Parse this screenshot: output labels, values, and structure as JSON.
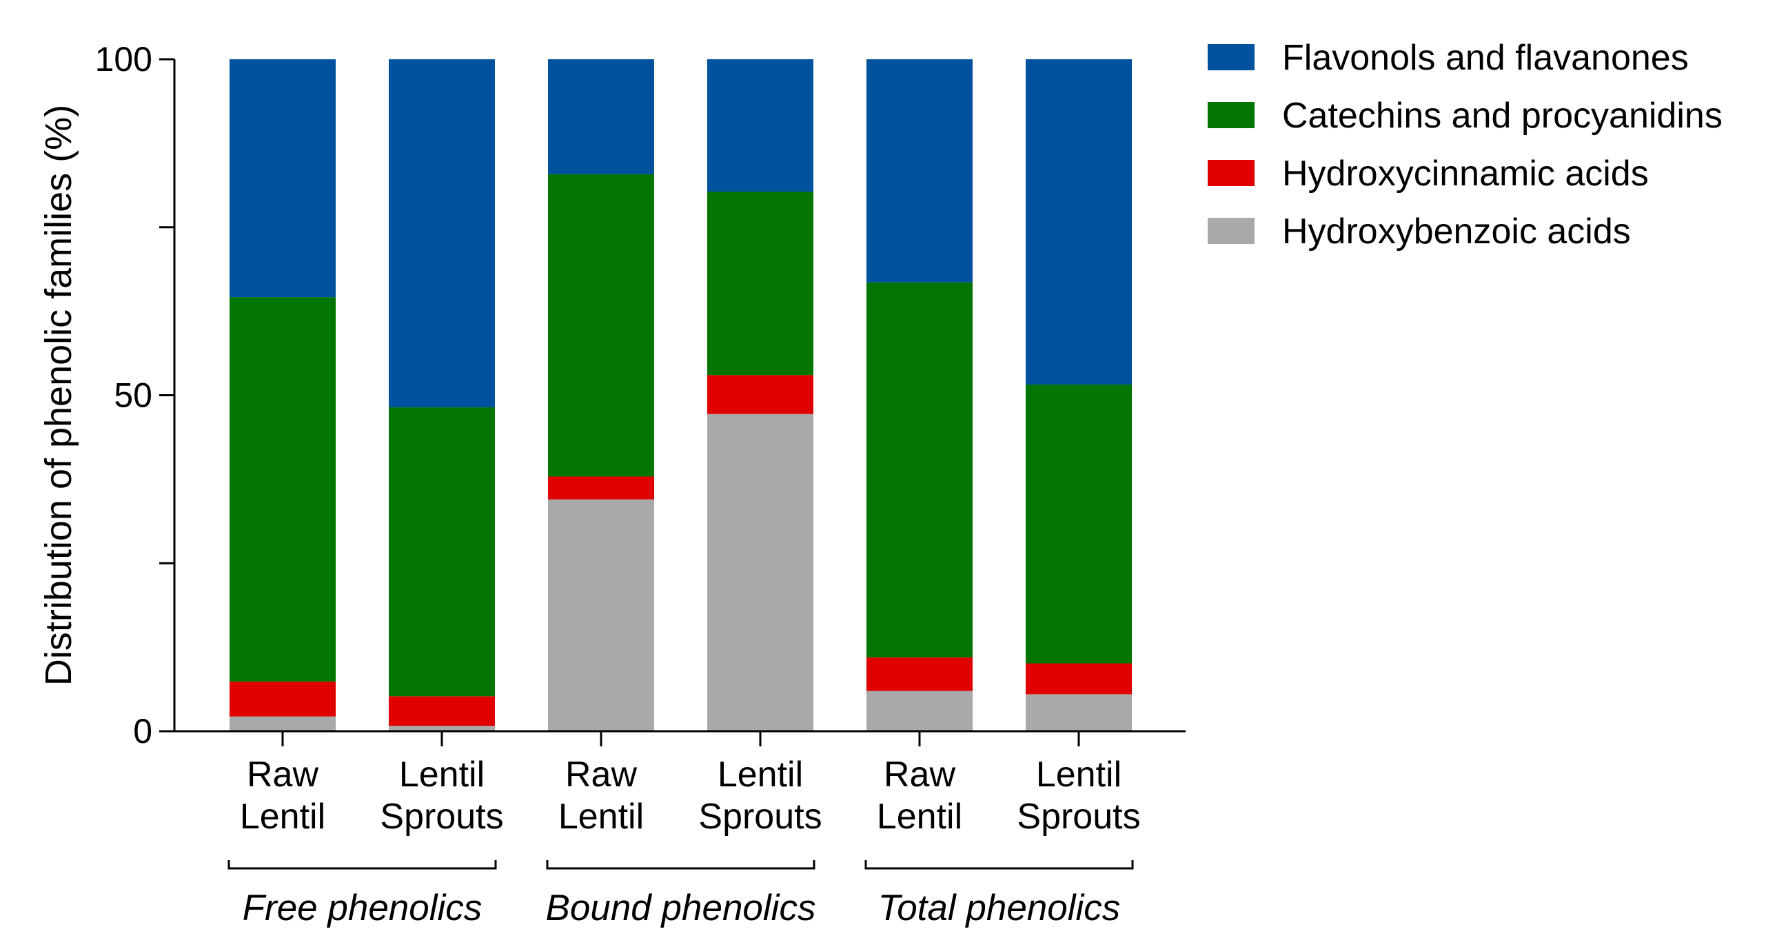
{
  "chart_data": {
    "type": "bar",
    "stacked": true,
    "ylabel": "Distribution of phenolic families (%)",
    "xlabel": "",
    "ylim": [
      0,
      100
    ],
    "y_ticks": [
      0,
      25,
      50,
      75,
      100
    ],
    "y_tick_labels": [
      "0",
      "",
      "50",
      "",
      "100"
    ],
    "categories": [
      {
        "line1": "Raw",
        "line2": "Lentil"
      },
      {
        "line1": "Lentil",
        "line2": "Sprouts"
      },
      {
        "line1": "Raw",
        "line2": "Lentil"
      },
      {
        "line1": "Lentil",
        "line2": "Sprouts"
      },
      {
        "line1": "Raw",
        "line2": "Lentil"
      },
      {
        "line1": "Lentil",
        "line2": "Sprouts"
      }
    ],
    "groups": [
      {
        "label": "Free phenolics",
        "span": [
          0,
          1
        ]
      },
      {
        "label": "Bound phenolics",
        "span": [
          2,
          3
        ]
      },
      {
        "label": "Total phenolics",
        "span": [
          4,
          5
        ]
      }
    ],
    "series": [
      {
        "name": "Hydroxybenzoic acids",
        "color": "#a9a9a9",
        "values": [
          2.2,
          0.8,
          34.5,
          47.2,
          6.0,
          5.5
        ]
      },
      {
        "name": "Hydroxycinnamic acids",
        "color": "#e00000",
        "values": [
          5.2,
          4.4,
          3.4,
          5.8,
          5.0,
          4.6
        ]
      },
      {
        "name": "Catechins and procyanidins",
        "color": "#027502",
        "values": [
          57.2,
          43.0,
          45.0,
          27.3,
          55.8,
          41.5
        ]
      },
      {
        "name": "Flavonols and flavanones",
        "color": "#01529e",
        "values": [
          35.4,
          51.8,
          17.1,
          19.7,
          33.2,
          48.4
        ]
      }
    ],
    "legend": {
      "position": "top-right",
      "order": [
        "Flavonols and flavanones",
        "Catechins and procyanidins",
        "Hydroxycinnamic acids",
        "Hydroxybenzoic acids"
      ]
    }
  }
}
